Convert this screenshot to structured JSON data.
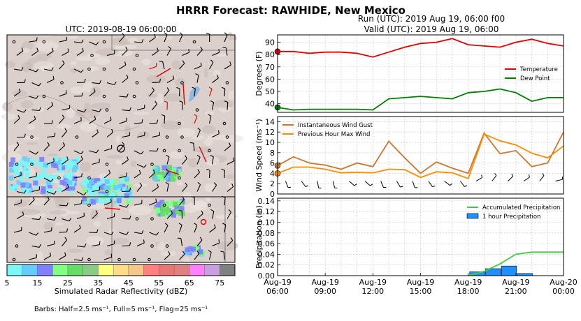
{
  "header": {
    "title": "HRRR Forecast: RAWHIDE, New Mexico",
    "run": "Run (UTC): 2019 Aug 19, 06:00 f00",
    "valid": "Valid (UTC): 2019 Aug 19, 06:00"
  },
  "map": {
    "title": "UTC: 2019-08-19 06:00:00",
    "colorbar_label": "Simulated Radar Reflectivity (dBZ)",
    "colorbar_ticks": [
      "5",
      "15",
      "25",
      "35",
      "45",
      "55",
      "65",
      "75"
    ],
    "colorbar_colors": [
      "#7af7f7",
      "#66ccff",
      "#8080ff",
      "#80ff80",
      "#66dd66",
      "#88cc88",
      "#ffff80",
      "#ffdd88",
      "#f4c88a",
      "#ff8080",
      "#e87878",
      "#e08080",
      "#ff80ff",
      "#c8a0e0",
      "#808080"
    ],
    "barbs_note": "Barbs: Half=2.5 ms⁻¹, Full=5 ms⁻¹, Flag=25 ms⁻¹"
  },
  "chart_data": [
    {
      "type": "line",
      "ylabel": "Degrees (F)",
      "ylim": [
        33,
        96
      ],
      "yticks": [
        "40",
        "50",
        "60",
        "70",
        "80",
        "90"
      ],
      "x_hours": [
        0,
        1,
        2,
        3,
        4,
        5,
        6,
        7,
        8,
        9,
        10,
        11,
        12,
        13,
        14,
        15,
        16,
        17,
        18
      ],
      "legend_position": "right",
      "series": [
        {
          "name": "Temperature",
          "color": "#e00000",
          "values": [
            82.5,
            82.5,
            81,
            82,
            82,
            81,
            78,
            82,
            86,
            89,
            90,
            93,
            88,
            87,
            86,
            90,
            92.5,
            89,
            87
          ]
        },
        {
          "name": "Dew Point",
          "color": "#008000",
          "values": [
            37,
            35,
            35.5,
            35.5,
            35.5,
            35.5,
            35,
            44,
            45,
            46,
            45,
            44,
            49,
            50,
            52,
            49,
            42,
            45,
            45
          ]
        }
      ]
    },
    {
      "type": "line",
      "ylabel": "Wind Speed (ms⁻¹)",
      "ylim": [
        0,
        15
      ],
      "yticks": [
        "0",
        "2",
        "4",
        "6",
        "8",
        "10",
        "12",
        "14"
      ],
      "x_hours": [
        0,
        1,
        2,
        3,
        4,
        5,
        6,
        7,
        8,
        9,
        10,
        11,
        12,
        13,
        14,
        15,
        16,
        17,
        18
      ],
      "legend_position": "top-left",
      "series": [
        {
          "name": "Instantaneous Wind Gust",
          "color": "#c87830",
          "values": [
            5.5,
            7.2,
            6,
            5.6,
            4.8,
            6,
            5.3,
            10.2,
            7,
            4,
            6.2,
            5,
            4,
            11.8,
            7.8,
            8.4,
            5.3,
            6,
            12
          ]
        },
        {
          "name": "Previous Hour Max Wind",
          "color": "#ff8c00",
          "values": [
            4,
            5.2,
            5.2,
            4.8,
            4.1,
            4.2,
            4.1,
            4.8,
            4.7,
            3.2,
            4.3,
            4.1,
            3,
            11.6,
            10.3,
            9.5,
            7.9,
            7,
            9.3
          ]
        }
      ]
    },
    {
      "type": "bar",
      "ylabel": "Precipitation (in)",
      "ylim": [
        0,
        0.145
      ],
      "yticks": [
        "0.00",
        "0.02",
        "0.04",
        "0.06",
        "0.08",
        "0.10",
        "0.12",
        "0.14"
      ],
      "legend_position": "top-right",
      "series": [
        {
          "name": "Accumulated Precipitation",
          "color": "#40cc40",
          "kind": "line",
          "x_hours": [
            12,
            13,
            14,
            15,
            16,
            17,
            18
          ],
          "values": [
            0,
            0.008,
            0.022,
            0.04,
            0.044,
            0.044,
            0.044
          ]
        },
        {
          "name": "1 hour Precipitation",
          "color": "#1e90ff",
          "kind": "bar",
          "x_hours": [
            13,
            14,
            15,
            16
          ],
          "values": [
            0.007,
            0.013,
            0.018,
            0.004
          ]
        }
      ],
      "xticks": [
        {
          "hour": 0,
          "date": "Aug-19",
          "time": "06:00"
        },
        {
          "hour": 3,
          "date": "Aug-19",
          "time": "09:00"
        },
        {
          "hour": 6,
          "date": "Aug-19",
          "time": "12:00"
        },
        {
          "hour": 9,
          "date": "Aug-19",
          "time": "15:00"
        },
        {
          "hour": 12,
          "date": "Aug-19",
          "time": "18:00"
        },
        {
          "hour": 15,
          "date": "Aug-19",
          "time": "21:00"
        },
        {
          "hour": 18,
          "date": "Aug-20",
          "time": "00:00"
        }
      ]
    }
  ]
}
